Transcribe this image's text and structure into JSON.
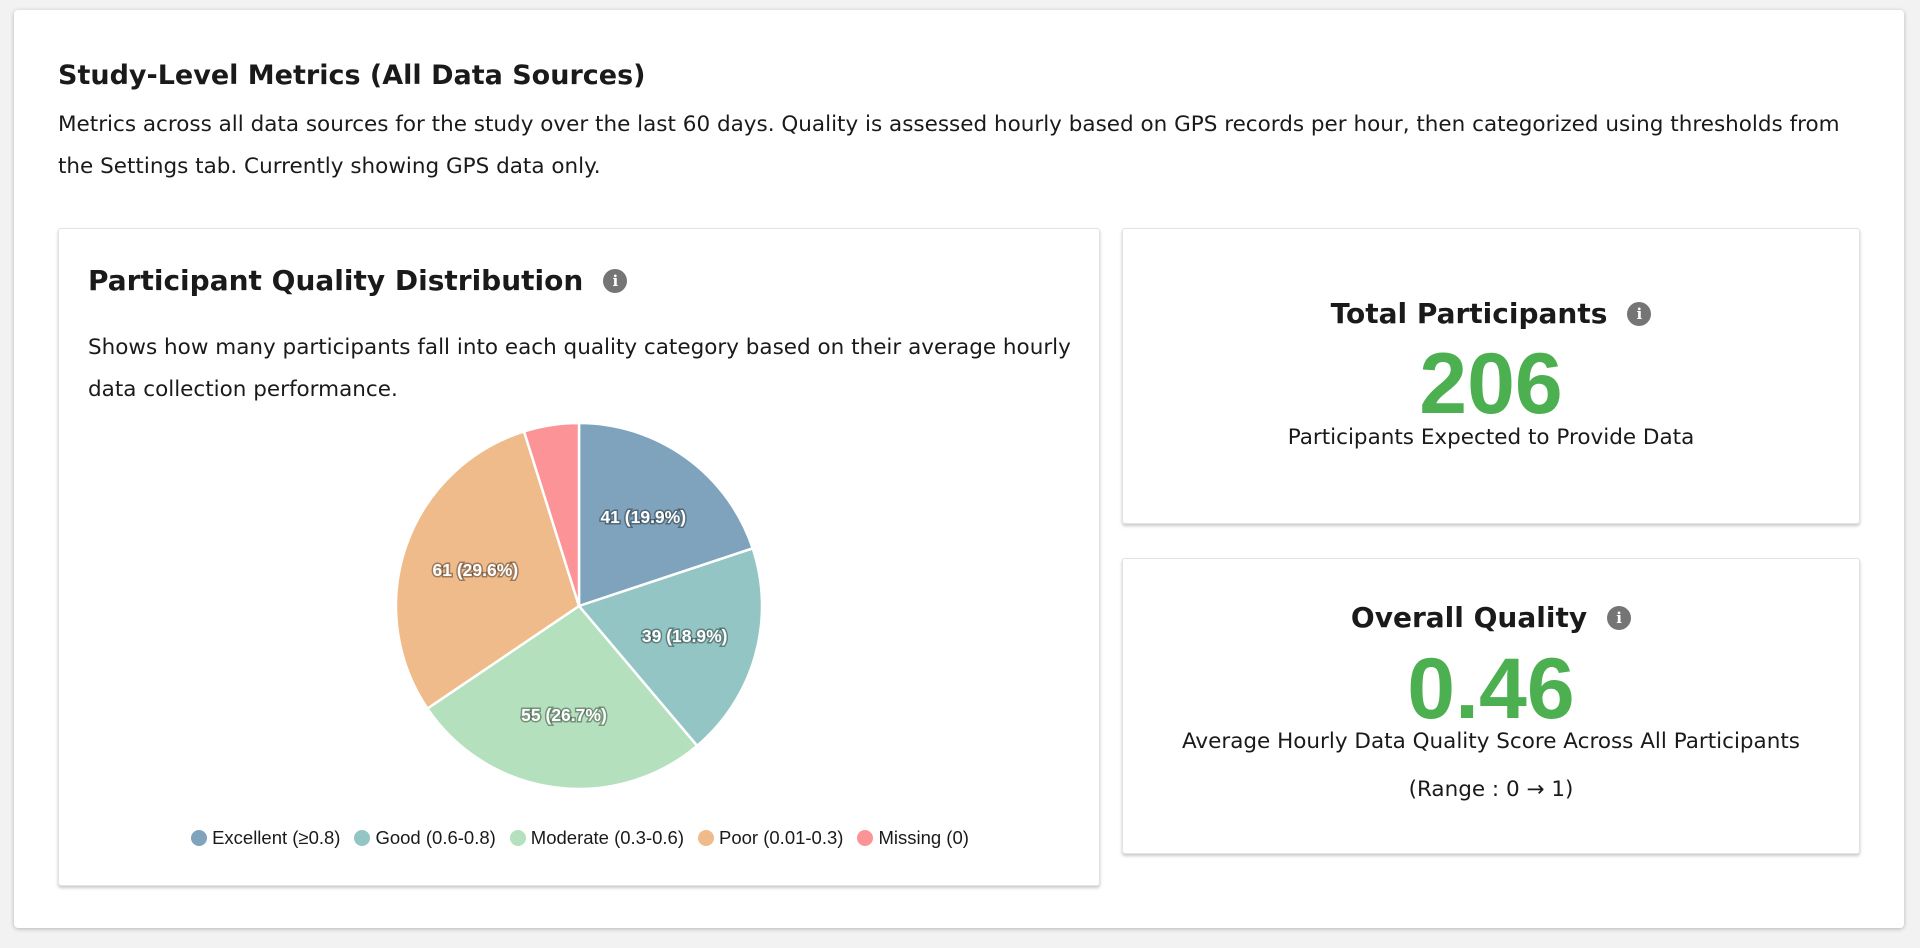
{
  "section": {
    "title": "Study-Level Metrics (All Data Sources)",
    "description": "Metrics across all data sources for the study over the last 60 days. Quality is assessed hourly based on GPS records per hour, then categorized using thresholds from the Settings tab. Currently showing GPS data only."
  },
  "distribution_card": {
    "title": "Participant Quality Distribution",
    "info_icon": "info-icon",
    "description": "Shows how many participants fall into each quality category based on their average hourly data collection performance."
  },
  "total_card": {
    "title": "Total Participants",
    "info_icon": "info-icon",
    "value": "206",
    "subtitle": "Participants Expected to Provide Data"
  },
  "quality_card": {
    "title": "Overall Quality",
    "info_icon": "info-icon",
    "value": "0.46",
    "subtitle": "Average Hourly Data Quality Score Across All Participants",
    "range": "(Range : 0 → 1)"
  },
  "colors": {
    "metric_value": "#4caf50",
    "info_icon": "#757575"
  },
  "chart_data": {
    "type": "pie",
    "title": "",
    "categories": [
      "Excellent (≥0.8)",
      "Good (0.6-0.8)",
      "Moderate (0.3-0.6)",
      "Poor (0.01-0.3)",
      "Missing (0)"
    ],
    "values": [
      41,
      39,
      55,
      61,
      10
    ],
    "labels": [
      "41 (19.9%)",
      "39 (18.9%)",
      "55 (26.7%)",
      "61 (29.6%)",
      ""
    ],
    "colors": [
      "#7fa3bc",
      "#93c5c4",
      "#b4e0bd",
      "#f0bb8a",
      "#fc9396"
    ],
    "start": "12 o'clock, clockwise",
    "legend": "bottom-center"
  }
}
